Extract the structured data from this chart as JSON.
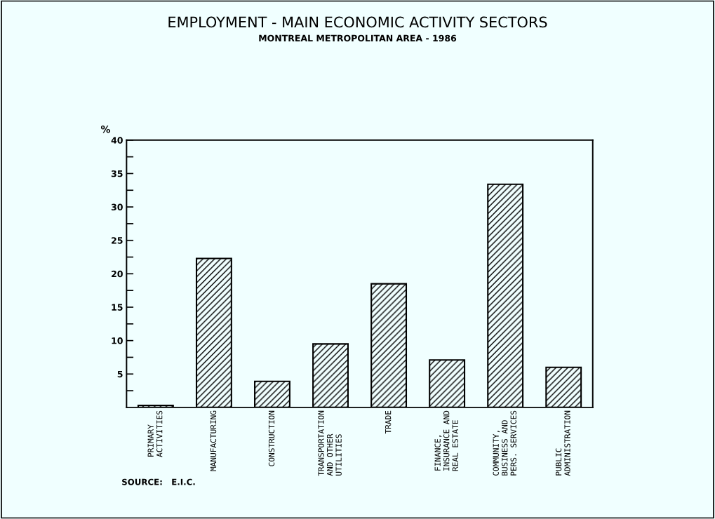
{
  "chart_data": {
    "type": "bar",
    "title": "EMPLOYMENT - MAIN ECONOMIC ACTIVITY SECTORS",
    "subtitle": "MONTREAL METROPOLITAN AREA - 1986",
    "ylabel": "%",
    "categories": [
      "PRIMARY\nACTIVITIES",
      "MANUFACTURING",
      "CONSTRUCTION",
      "TRANSPORTATION\nAND OTHER\nUTILITIES",
      "TRADE",
      "FINANCE,\nINSURANCE AND\nREAL ESTATE",
      "COMMUNITY,\nBUSINESS AND\nPERS. SERVICES",
      "PUBLIC\nADMINISTRATION"
    ],
    "values": [
      0.3,
      22.3,
      3.9,
      9.5,
      18.5,
      7.1,
      33.4,
      6.0
    ],
    "color": "#000000",
    "ylim": [
      0,
      40
    ],
    "yticks": [
      {
        "value": 2.5,
        "label": null
      },
      5,
      {
        "value": 7.5,
        "label": null
      },
      10,
      {
        "value": 12.5,
        "label": null
      },
      15,
      {
        "value": 17.5,
        "label": null
      },
      20,
      {
        "value": 22.5,
        "label": null
      },
      25,
      {
        "value": 27.5,
        "label": null
      },
      30,
      {
        "value": 32.5,
        "label": null
      },
      35,
      {
        "value": 37.5,
        "label": null
      },
      40
    ],
    "grid": false,
    "legend": false,
    "annotations": [
      "SOURCE:   E.I.C."
    ]
  }
}
